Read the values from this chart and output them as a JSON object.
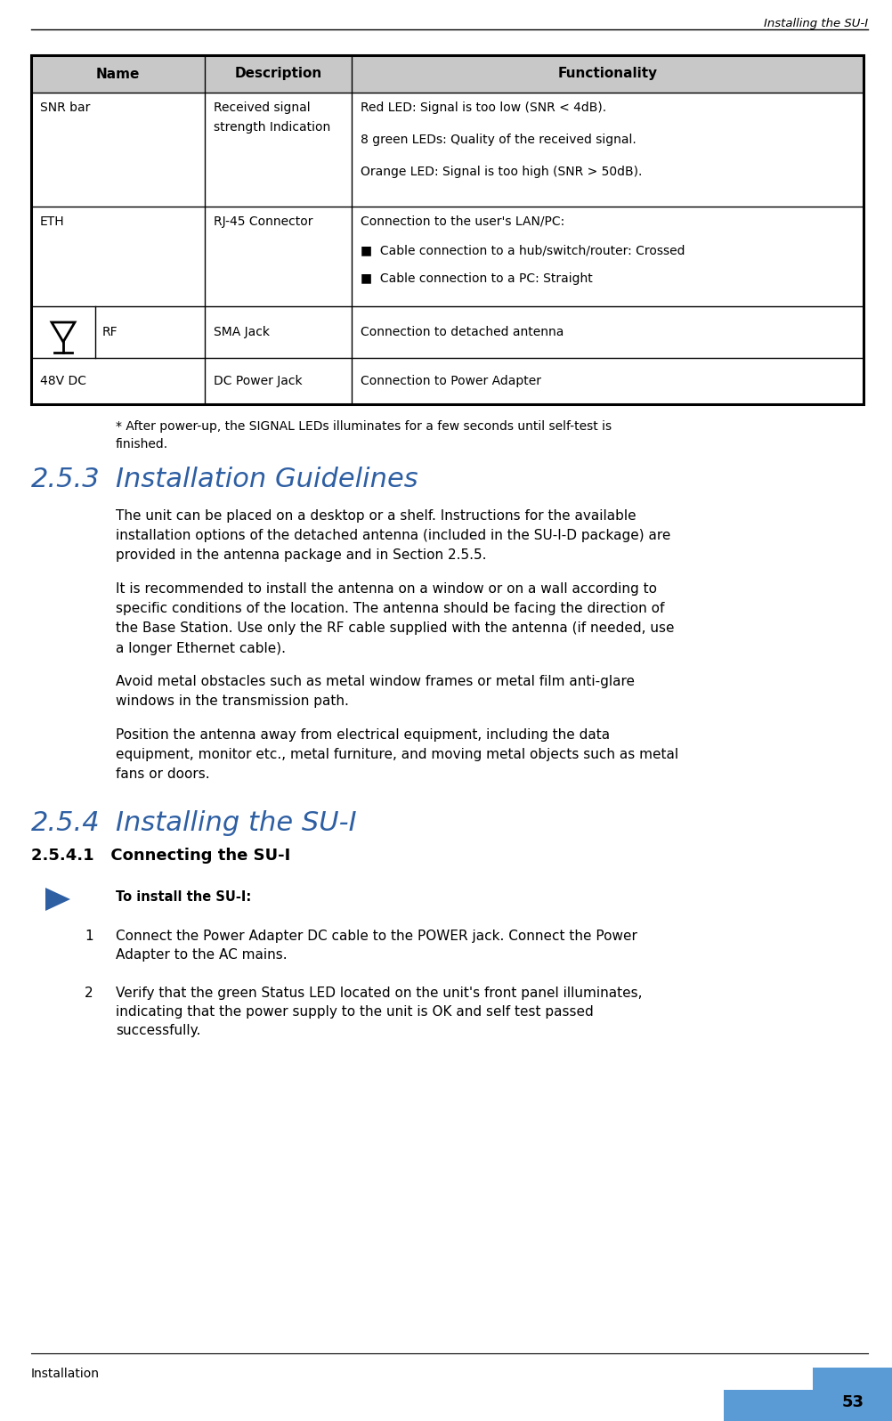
{
  "page_title": "Installing the SU-I",
  "footer_left": "Installation",
  "footer_page": "53",
  "footer_color": "#5b9bd5",
  "table_header_bg": "#c0c0c0",
  "table_header_row": [
    "Name",
    "Description",
    "Functionality"
  ],
  "snr_func_lines": [
    "Red LED: Signal is too low (SNR < 4dB).",
    "8 green LEDs: Quality of the received signal.",
    "Orange LED: Signal is too high (SNR > 50dB)."
  ],
  "eth_func_lines": [
    "Connection to the user's LAN/PC:",
    "■  Cable connection to a hub/switch/router: Crossed",
    "■  Cable connection to a PC: Straight"
  ],
  "footnote_line1": "* After power-up, the SIGNAL LEDs illuminates for a few seconds until self-test is",
  "footnote_line2": "finished.",
  "section_253_num": "2.5.3",
  "section_253_title": "Installation Guidelines",
  "section_253_body": [
    "The unit can be placed on a desktop or a shelf. Instructions for the available\ninstallation options of the detached antenna (included in the SU-I-D package) are\nprovided in the antenna package and in Section 2.5.5.",
    "It is recommended to install the antenna on a window or on a wall according to\nspecific conditions of the location. The antenna should be facing the direction of\nthe Base Station. Use only the RF cable supplied with the antenna (if needed, use\na longer Ethernet cable).",
    "Avoid metal obstacles such as metal window frames or metal film anti-glare\nwindows in the transmission path.",
    "Position the antenna away from electrical equipment, including the data\nequipment, monitor etc., metal furniture, and moving metal objects such as metal\nfans or doors."
  ],
  "section_254_num": "2.5.4",
  "section_254_title": "Installing the SU-I",
  "section_2541_title": "2.5.4.1   Connecting the SU-I",
  "arrow_note": "To install the SU-I:",
  "steps": [
    "Connect the Power Adapter DC cable to the POWER jack. Connect the Power\nAdapter to the AC mains.",
    "Verify that the green Status LED located on the unit's front panel illuminates,\nindicating that the power supply to the unit is OK and self test passed\nsuccessfully."
  ],
  "bg_color": "#ffffff",
  "section_color": "#2e5fa3",
  "text_color": "#000000"
}
